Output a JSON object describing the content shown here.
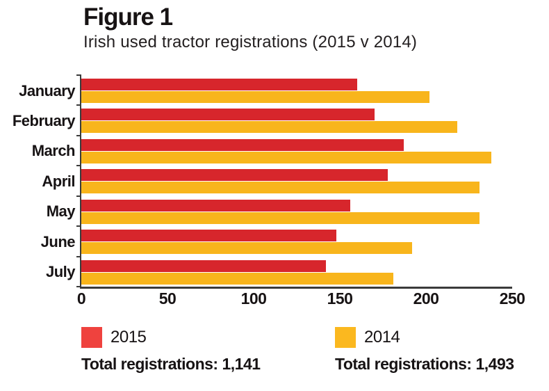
{
  "figure": {
    "title": "Figure 1",
    "subtitle": "Irish used tractor registrations (2015 v 2014)"
  },
  "chart_data": {
    "type": "bar",
    "orientation": "horizontal",
    "title": "Figure 1",
    "subtitle": "Irish used tractor registrations (2015 v 2014)",
    "categories": [
      "January",
      "February",
      "March",
      "April",
      "May",
      "June",
      "July"
    ],
    "series": [
      {
        "name": "2015",
        "color": "#d7262c",
        "legend_swatch_color": "#ef423e",
        "values": [
          160,
          170,
          187,
          178,
          156,
          148,
          142
        ],
        "total": 1141
      },
      {
        "name": "2014",
        "color": "#f8b51c",
        "legend_swatch_color": "#fbb81f",
        "values": [
          202,
          218,
          238,
          231,
          231,
          192,
          181
        ],
        "total": 1493
      }
    ],
    "xlim": [
      0,
      250
    ],
    "x_ticks": [
      0,
      50,
      100,
      150,
      200,
      250
    ],
    "grid": false,
    "legend_position": "bottom"
  },
  "legend": {
    "items": [
      {
        "label": "2015",
        "total_line": "Total registrations: 1,141"
      },
      {
        "label": "2014",
        "total_line": "Total registrations: 1,493"
      }
    ]
  },
  "colors": {
    "axis": "#3b3b3b",
    "text": "#221e1f",
    "background": "#ffffff"
  }
}
